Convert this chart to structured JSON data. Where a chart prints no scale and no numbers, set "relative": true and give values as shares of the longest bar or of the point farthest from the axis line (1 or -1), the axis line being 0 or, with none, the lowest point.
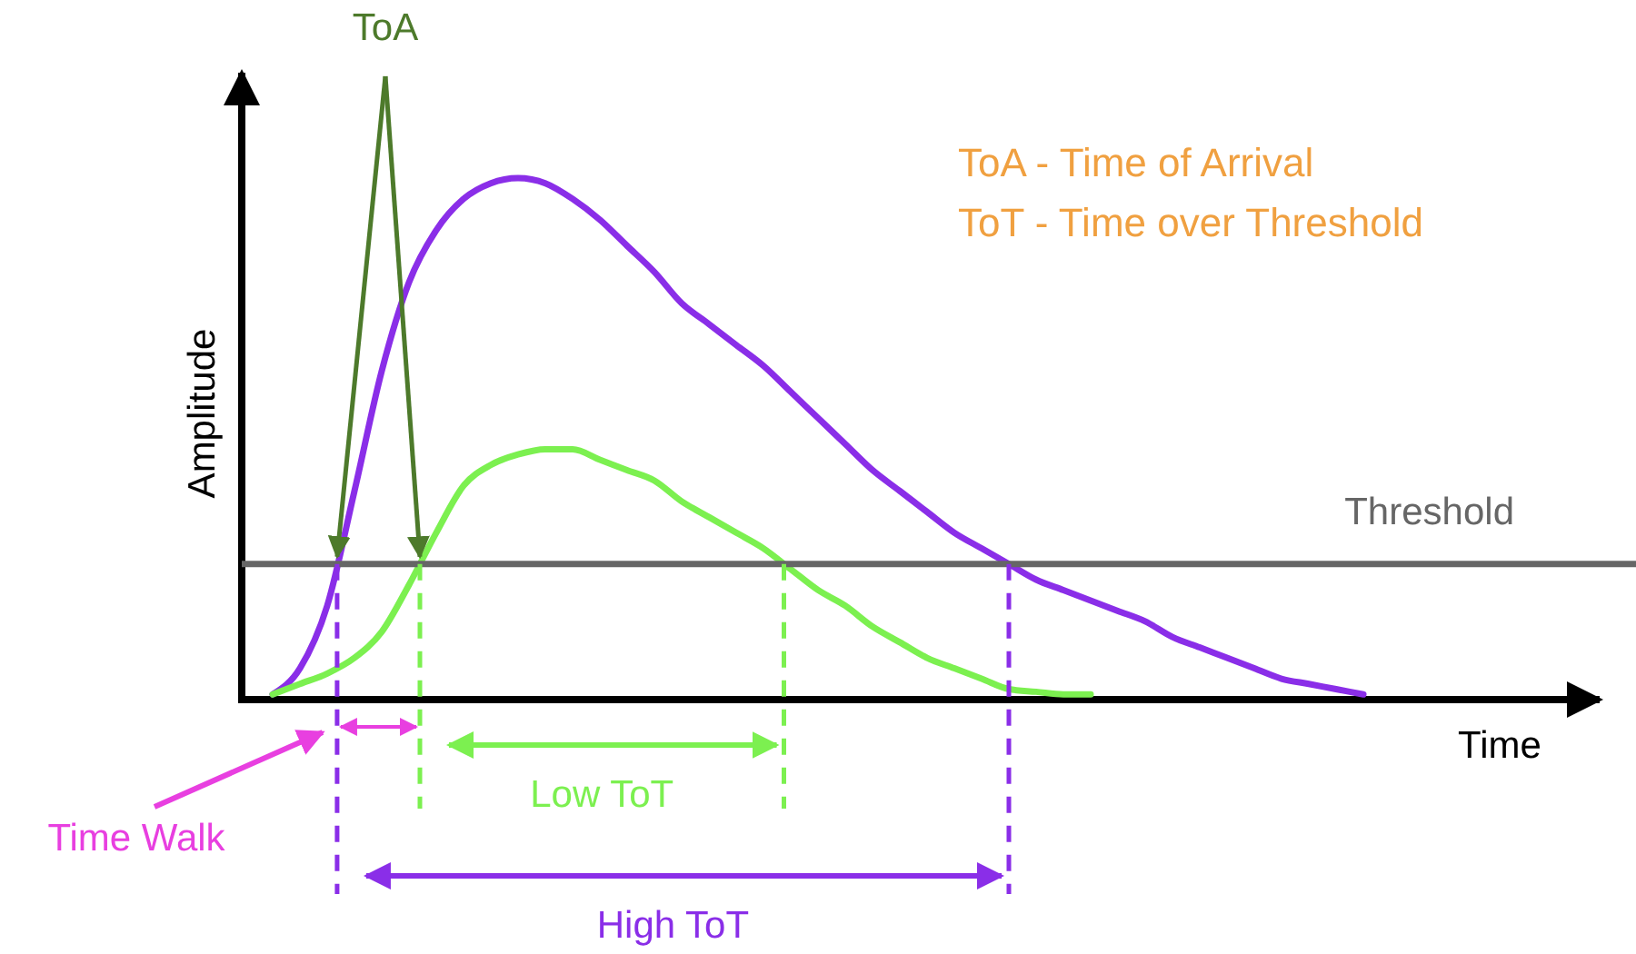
{
  "chart_data": {
    "type": "line",
    "relative": true,
    "xlabel": "Time",
    "ylabel": "Amplitude",
    "categories": [
      null,
      null,
      null,
      null,
      null,
      null,
      null,
      null,
      null,
      null,
      null,
      null,
      null,
      null,
      null,
      null,
      null,
      null,
      null,
      null,
      null,
      null,
      null,
      null,
      null,
      null,
      null,
      null,
      null,
      null,
      null,
      null,
      null,
      null,
      null,
      null,
      null,
      null,
      null,
      null,
      null
    ],
    "series": [
      {
        "color": "#8a2ee8",
        "values": [
          0.01,
          0.06,
          0.18,
          0.4,
          0.63,
          0.8,
          0.9,
          0.96,
          0.99,
          1.0,
          0.99,
          0.96,
          0.92,
          0.87,
          0.82,
          0.76,
          0.72,
          0.68,
          0.64,
          0.59,
          0.54,
          0.49,
          0.44,
          0.4,
          0.36,
          0.32,
          0.29,
          0.26,
          0.23,
          0.21,
          0.19,
          0.17,
          0.15,
          0.12,
          0.1,
          0.08,
          0.06,
          0.04,
          0.03,
          0.02,
          0.01
        ]
      },
      {
        "color": "#7cf050",
        "values": [
          0.01,
          0.03,
          0.05,
          0.08,
          0.13,
          0.22,
          0.32,
          0.41,
          0.45,
          0.47,
          0.48,
          0.48,
          0.46,
          0.44,
          0.42,
          0.38,
          0.35,
          0.32,
          0.29,
          0.25,
          0.21,
          0.18,
          0.14,
          0.11,
          0.08,
          0.06,
          0.04,
          0.02,
          0.015,
          0.01,
          0.01,
          null,
          null,
          null,
          null,
          null,
          null,
          null,
          null,
          null,
          null
        ]
      }
    ],
    "ref_lines": [
      {
        "axis": "y",
        "value": 0.26,
        "label": "Threshold",
        "color": "#666666"
      }
    ],
    "annotations": [
      "ToA",
      "ToA - Time of Arrival",
      "ToT - Time over Threshold",
      "Time Walk",
      "Low ToT",
      "High ToT"
    ]
  }
}
